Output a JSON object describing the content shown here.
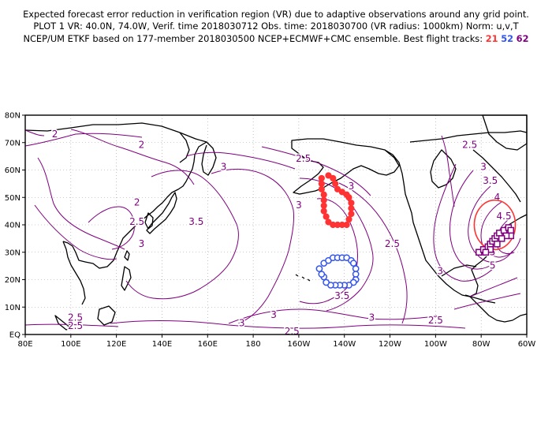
{
  "header": {
    "line1": "Expected forecast error reduction in verification region (VR) due to adaptive observations around any grid point.",
    "line2": "PLOT 1 VR: 40.0N, 74.0W, Verif. time 2018030712 Obs. time: 2018030700 (VR radius: 1000km) Norm: u,v,T",
    "line3_prefix": "NCEP/UM ETKF based on 177-member 2018030500 NCEP+ECMWF+CMC ensemble. Best flight tracks:",
    "tracks": [
      {
        "label": "21",
        "color": "#ff3333"
      },
      {
        "label": "52",
        "color": "#3355ee"
      },
      {
        "label": "62",
        "color": "#800080"
      }
    ]
  },
  "map": {
    "lon_ticks": [
      "80E",
      "100E",
      "120E",
      "140E",
      "160E",
      "180",
      "160W",
      "140W",
      "120W",
      "100W",
      "80W",
      "60W"
    ],
    "lat_ticks": [
      "EQ",
      "10N",
      "20N",
      "30N",
      "40N",
      "50N",
      "60N",
      "70N",
      "80N"
    ],
    "contour_color": "#800080",
    "contour_labels": [
      {
        "text": "2",
        "lon": 93,
        "lat": 73
      },
      {
        "text": "2",
        "lon": 131,
        "lat": 69
      },
      {
        "text": "2",
        "lon": 129,
        "lat": 48
      },
      {
        "text": "2.5",
        "lon": 129,
        "lat": 41
      },
      {
        "text": "3",
        "lon": 131,
        "lat": 33
      },
      {
        "text": "3.5",
        "lon": 155,
        "lat": 41
      },
      {
        "text": "3",
        "lon": 167,
        "lat": 61
      },
      {
        "text": "2.5",
        "lon": 202,
        "lat": 64
      },
      {
        "text": "3",
        "lon": 223,
        "lat": 54
      },
      {
        "text": "3",
        "lon": 200,
        "lat": 47
      },
      {
        "text": "2.5",
        "lon": 241,
        "lat": 33
      },
      {
        "text": "2.5",
        "lon": 275,
        "lat": 69
      },
      {
        "text": "3",
        "lon": 281,
        "lat": 61
      },
      {
        "text": "3.5",
        "lon": 284,
        "lat": 56
      },
      {
        "text": "4",
        "lon": 287,
        "lat": 50
      },
      {
        "text": "4.5",
        "lon": 290,
        "lat": 43
      },
      {
        "text": "3",
        "lon": 262,
        "lat": 23
      },
      {
        "text": "3.5",
        "lon": 219,
        "lat": 14
      },
      {
        "text": "3",
        "lon": 232,
        "lat": 6
      },
      {
        "text": "3",
        "lon": 189,
        "lat": 7
      },
      {
        "text": "3",
        "lon": 175,
        "lat": 4
      },
      {
        "text": "2.5",
        "lon": 102,
        "lat": 6
      },
      {
        "text": "2.5",
        "lon": 102,
        "lat": 3
      },
      {
        "text": "2.5",
        "lon": 197,
        "lat": 1
      },
      {
        "text": "2.5",
        "lon": 260,
        "lat": 5
      },
      {
        "text": "4.5",
        "lon": 283,
        "lat": 30
      },
      {
        "text": "5",
        "lon": 285,
        "lat": 25
      }
    ],
    "verification_region": {
      "center_lat": 40.0,
      "center_lon": -74.0,
      "radius_km": 1000,
      "color": "#ff3333"
    },
    "tracks": [
      {
        "id": "21",
        "color": "#ff3333",
        "marker": "filled-circle",
        "points": [
          [
            -150,
            57
          ],
          [
            -150,
            55
          ],
          [
            -150,
            53
          ],
          [
            -149,
            51
          ],
          [
            -149,
            49
          ],
          [
            -149,
            47
          ],
          [
            -149,
            45
          ],
          [
            -148,
            43
          ],
          [
            -147,
            41
          ],
          [
            -145,
            40
          ],
          [
            -143,
            40
          ],
          [
            -141,
            40
          ],
          [
            -139,
            40
          ],
          [
            -138,
            42
          ],
          [
            -137,
            44
          ],
          [
            -137,
            46
          ],
          [
            -137,
            48
          ],
          [
            -138,
            50
          ],
          [
            -139,
            51
          ],
          [
            -141,
            52
          ],
          [
            -143,
            53
          ],
          [
            -144,
            55
          ],
          [
            -145,
            57
          ],
          [
            -147,
            58
          ]
        ]
      },
      {
        "id": "52",
        "color": "#3355ee",
        "marker": "open-circle",
        "points": [
          [
            -151,
            24
          ],
          [
            -149,
            26
          ],
          [
            -147,
            27
          ],
          [
            -145,
            28
          ],
          [
            -143,
            28
          ],
          [
            -141,
            28
          ],
          [
            -139,
            28
          ],
          [
            -137,
            27
          ],
          [
            -136,
            26
          ],
          [
            -135,
            24
          ],
          [
            -135,
            22
          ],
          [
            -135,
            20
          ],
          [
            -136,
            19
          ],
          [
            -138,
            18
          ],
          [
            -140,
            18
          ],
          [
            -142,
            18
          ],
          [
            -144,
            18
          ],
          [
            -146,
            18
          ],
          [
            -148,
            19
          ],
          [
            -149,
            21
          ],
          [
            -150,
            22
          ]
        ]
      },
      {
        "id": "62",
        "color": "#800080",
        "marker": "open-square",
        "points": [
          [
            -81,
            30
          ],
          [
            -79,
            31
          ],
          [
            -77,
            32
          ],
          [
            -76,
            33
          ],
          [
            -75,
            34
          ],
          [
            -74,
            35
          ],
          [
            -73,
            36
          ],
          [
            -72,
            37
          ],
          [
            -70,
            38
          ],
          [
            -68,
            39
          ],
          [
            -67,
            38
          ],
          [
            -67,
            36
          ],
          [
            -69,
            36
          ],
          [
            -71,
            35
          ],
          [
            -73,
            33
          ],
          [
            -76,
            31
          ],
          [
            -78,
            30
          ]
        ]
      }
    ]
  }
}
